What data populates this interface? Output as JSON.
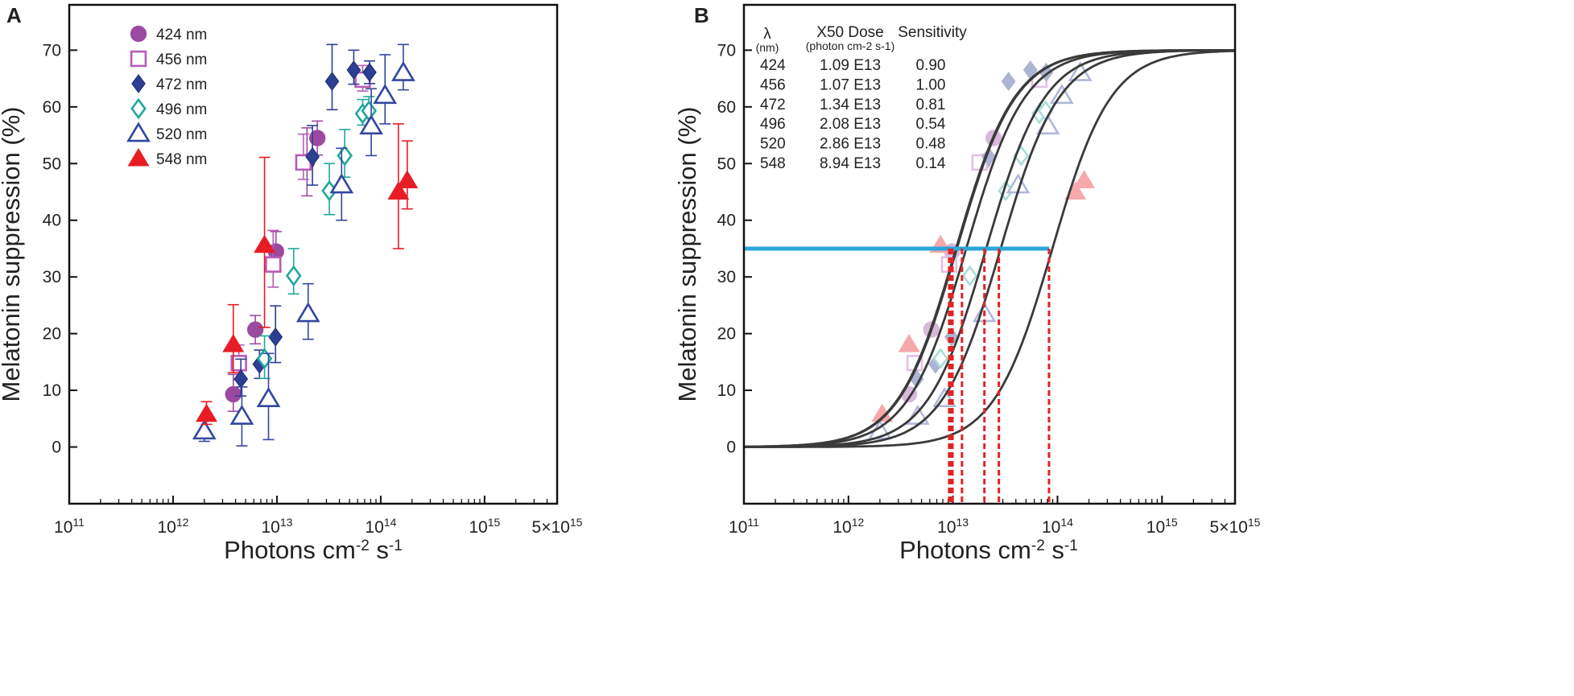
{
  "panel_a": {
    "letter": "A",
    "xlabel_main": "Photons cm",
    "xlabel_exp1": "-2",
    "xlabel_mid": " s",
    "xlabel_exp2": "-1",
    "ylabel": "Melatonin suppression (%)",
    "legend": [
      {
        "series": "424 nm",
        "marker": "circle"
      },
      {
        "series": "456 nm",
        "marker": "square"
      },
      {
        "series": "472 nm",
        "marker": "diamond"
      },
      {
        "series": "496 nm",
        "marker": "diamond-open"
      },
      {
        "series": "520 nm",
        "marker": "triangle-open"
      },
      {
        "series": "548 nm",
        "marker": "triangle"
      }
    ]
  },
  "panel_b": {
    "letter": "B",
    "xlabel_main": "Photons cm",
    "xlabel_exp1": "-2",
    "xlabel_mid": " s",
    "xlabel_exp2": "-1",
    "ylabel": "Melatonin suppression (%)",
    "table": {
      "col1_header": "λ",
      "col1_sub": "(nm)",
      "col2_header": "X50 Dose",
      "col2_sub": "(photon cm-2 s-1)",
      "col3_header": "Sensitivity",
      "rows": [
        {
          "wl": "424",
          "dose": "1.09 E13",
          "sens": "0.90"
        },
        {
          "wl": "456",
          "dose": "1.07 E13",
          "sens": "1.00"
        },
        {
          "wl": "472",
          "dose": "1.34 E13",
          "sens": "0.81"
        },
        {
          "wl": "496",
          "dose": "2.08 E13",
          "sens": "0.54"
        },
        {
          "wl": "520",
          "dose": "2.86 E13",
          "sens": "0.48"
        },
        {
          "wl": "548",
          "dose": "8.94 E13",
          "sens": "0.14"
        }
      ]
    }
  },
  "colors": {
    "s424": "#9b4aa0",
    "s456": "#b65bb8",
    "s472": "#2b3f93",
    "s496": "#1fa89b",
    "s520": "#3346a0",
    "s548": "#e81c24",
    "fit": "#3a3a3a",
    "criterion": "#2aa6d8",
    "drop": "#e02424"
  },
  "chart_data": {
    "type": "scatter",
    "xscale": "log",
    "xlim": [
      100000000000.0,
      5000000000000000.0
    ],
    "ylim": [
      -10,
      78
    ],
    "x_ticks": [
      100000000000.0,
      1000000000000.0,
      10000000000000.0,
      100000000000000.0,
      1000000000000000.0,
      5000000000000000.0
    ],
    "x_tick_labels": [
      {
        "base": "10",
        "exp": "11"
      },
      {
        "base": "10",
        "exp": "12"
      },
      {
        "base": "10",
        "exp": "13"
      },
      {
        "base": "10",
        "exp": "14"
      },
      {
        "base": "10",
        "exp": "15"
      },
      {
        "base": "5×10",
        "exp": "15"
      }
    ],
    "y_ticks": [
      0,
      10,
      20,
      30,
      40,
      50,
      60,
      70
    ],
    "series": [
      {
        "name": "424 nm",
        "key": "s424",
        "marker": "circle",
        "filled": true,
        "points": [
          [
            3800000000000.0,
            9.3,
            3.5,
            3.0
          ],
          [
            6200000000000.0,
            20.7,
            2.5,
            2.5
          ],
          [
            9800000000000.0,
            34.5,
            3.5,
            3.5
          ],
          [
            19500000000000.0,
            50.3,
            6.0,
            6.0
          ],
          [
            24500000000000.0,
            54.5,
            3.0,
            3.0
          ]
        ]
      },
      {
        "name": "456 nm",
        "key": "s456",
        "marker": "square",
        "filled": false,
        "points": [
          [
            4300000000000.0,
            14.8,
            3.2,
            3.0
          ],
          [
            9200000000000.0,
            32.2,
            6.0,
            4.0
          ],
          [
            18000000000000.0,
            50.2,
            5.0,
            3.0
          ],
          [
            67000000000000.0,
            64.8,
            2.5,
            2.0
          ]
        ]
      },
      {
        "name": "472 nm",
        "key": "s472",
        "marker": "diamond",
        "filled": true,
        "points": [
          [
            4500000000000.0,
            12.0,
            3.5,
            3.0
          ],
          [
            6800000000000.0,
            14.6,
            2.5,
            2.5
          ],
          [
            9700000000000.0,
            19.4,
            5.5,
            4.5
          ],
          [
            22000000000000.0,
            51.2,
            5.5,
            5.0
          ],
          [
            34000000000000.0,
            64.5,
            6.5,
            5.0
          ],
          [
            55000000000000.0,
            66.5,
            3.5,
            2.5
          ],
          [
            78000000000000.0,
            66.1,
            2.0,
            2.0
          ]
        ]
      },
      {
        "name": "496 nm",
        "key": "s496",
        "marker": "diamond-open",
        "filled": false,
        "points": [
          [
            7600000000000.0,
            15.6,
            4.0,
            3.5
          ],
          [
            14500000000000.0,
            30.2,
            4.8,
            3.2
          ],
          [
            32000000000000.0,
            45.2,
            4.8,
            4.2
          ],
          [
            45000000000000.0,
            51.4,
            4.6,
            3.8
          ],
          [
            67000000000000.0,
            58.8,
            2.5,
            2.0
          ],
          [
            77000000000000.0,
            59.3,
            2.5,
            2.5
          ]
        ]
      },
      {
        "name": "520 nm",
        "key": "s520",
        "marker": "triangle-open",
        "filled": false,
        "points": [
          [
            2000000000000.0,
            2.8,
            2.5,
            1.8
          ],
          [
            4600000000000.0,
            5.4,
            5.2,
            5.2
          ],
          [
            8300000000000.0,
            8.5,
            8.0,
            7.2
          ],
          [
            20000000000000.0,
            23.5,
            5.3,
            4.5
          ],
          [
            42000000000000.0,
            46.2,
            6.5,
            6.2
          ],
          [
            81000000000000.0,
            56.6,
            6.6,
            5.2
          ],
          [
            110000000000000.0,
            62.0,
            7.2,
            5.0
          ],
          [
            165000000000000.0,
            66.0,
            5.0,
            3.0
          ]
        ]
      },
      {
        "name": "548 nm",
        "key": "s548",
        "marker": "triangle",
        "filled": true,
        "points": [
          [
            2100000000000.0,
            5.8,
            2.2,
            1.8
          ],
          [
            3800000000000.0,
            18.1,
            7.0,
            5.0
          ],
          [
            7600000000000.0,
            35.6,
            15.5,
            14.5
          ],
          [
            148000000000000.0,
            45.0,
            12.0,
            10.0
          ],
          [
            180000000000000.0,
            47.0,
            7.0,
            5.0
          ]
        ]
      }
    ],
    "fits": [
      {
        "name": "424 nm",
        "x50": 10900000000000.0
      },
      {
        "name": "456 nm",
        "x50": 10700000000000.0
      },
      {
        "name": "472 nm",
        "x50": 13400000000000.0
      },
      {
        "name": "496 nm",
        "x50": 20800000000000.0
      },
      {
        "name": "520 nm",
        "x50": 28600000000000.0
      },
      {
        "name": "548 nm",
        "x50": 89400000000000.0
      }
    ],
    "fit_params": {
      "max": 70,
      "slope": 1.0
    },
    "criterion_y": 35,
    "criterion_drop_x": [
      9200000000000.0,
      9500000000000.0,
      9900000000000.0,
      12200000000000.0,
      20000000000000.0,
      27500000000000.0,
      83000000000000.0
    ]
  }
}
